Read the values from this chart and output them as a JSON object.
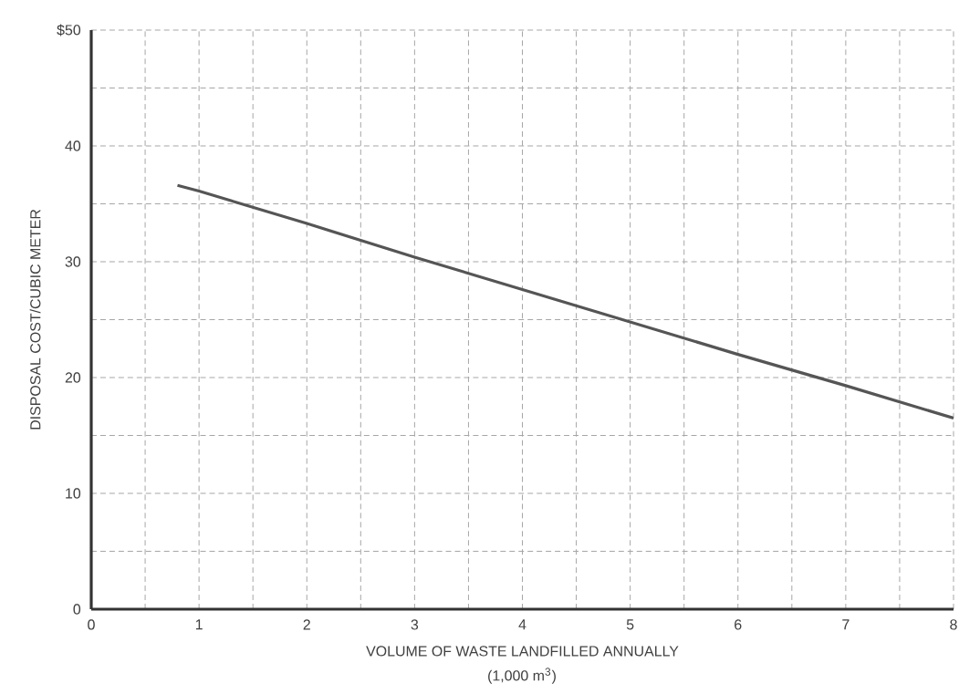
{
  "chart_data": {
    "type": "line",
    "xlabel": "VOLUME OF WASTE LANDFILLED ANNUALLY",
    "ylabel": "DISPOSAL COST/CUBIC METER",
    "annotations": [
      "(1,000 m$^{3}$)"
    ],
    "x": [
      0.8,
      1,
      2,
      3,
      4,
      5,
      6,
      7,
      8
    ],
    "series": [
      {
        "color": "#555555",
        "values": [
          36.6,
          36.1,
          33.3,
          30.4,
          27.6,
          24.8,
          22.0,
          19.3,
          16.5
        ]
      }
    ],
    "xlim": [
      0,
      8
    ],
    "xticks": [
      0,
      {
        "value": 0.5,
        "label": null
      },
      1,
      {
        "value": 1.5,
        "label": null
      },
      2,
      {
        "value": 2.5,
        "label": null
      },
      3,
      {
        "value": 3.5,
        "label": null
      },
      4,
      {
        "value": 4.5,
        "label": null
      },
      5,
      {
        "value": 5.5,
        "label": null
      },
      6,
      {
        "value": 6.5,
        "label": null
      },
      7,
      {
        "value": 7.5,
        "label": null
      },
      8
    ],
    "ylim": [
      0,
      50
    ],
    "yticks": [
      0,
      {
        "value": 5,
        "label": null
      },
      10,
      {
        "value": 15,
        "label": null
      },
      20,
      {
        "value": 25,
        "label": null
      },
      30,
      {
        "value": 35,
        "label": null
      },
      40,
      {
        "value": 45,
        "label": null
      },
      {
        "value": 50,
        "label": "$50"
      }
    ],
    "grid": true,
    "marker": "none",
    "line_style": "solid"
  }
}
